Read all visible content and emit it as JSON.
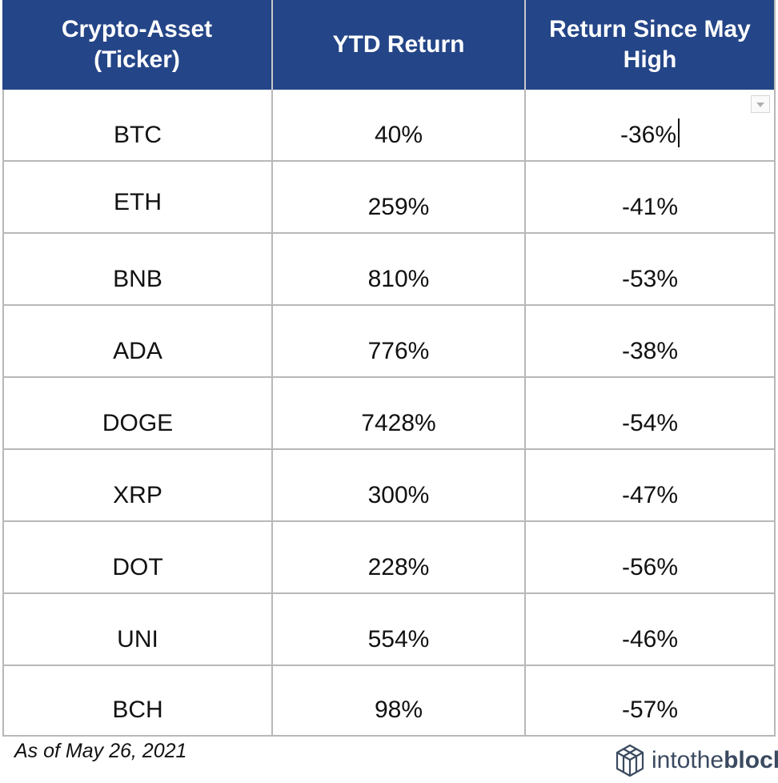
{
  "table": {
    "headers": [
      "Crypto-Asset\n(Ticker)",
      "YTD Return",
      "Return Since May\nHigh"
    ],
    "rows": [
      {
        "ticker": "BTC",
        "ytd": "40%",
        "since_high": "-36%"
      },
      {
        "ticker": "ETH",
        "ytd": "259%",
        "since_high": "-41%"
      },
      {
        "ticker": "BNB",
        "ytd": "810%",
        "since_high": "-53%"
      },
      {
        "ticker": "ADA",
        "ytd": "776%",
        "since_high": "-38%"
      },
      {
        "ticker": "DOGE",
        "ytd": "7428%",
        "since_high": "-54%"
      },
      {
        "ticker": "XRP",
        "ytd": "300%",
        "since_high": "-47%"
      },
      {
        "ticker": "DOT",
        "ytd": "228%",
        "since_high": "-56%"
      },
      {
        "ticker": "UNI",
        "ytd": "554%",
        "since_high": "-46%"
      },
      {
        "ticker": "BCH",
        "ytd": "98%",
        "since_high": "-57%"
      }
    ]
  },
  "footnote": "As of May 26, 2021",
  "brand": {
    "prefix": "intothe",
    "suffix": "block",
    "icon": "cube-logo-icon"
  },
  "colors": {
    "header_bg": "#244587",
    "header_text": "#ffffff",
    "grid": "#b8b8b8",
    "brand": "#3a4a60"
  }
}
